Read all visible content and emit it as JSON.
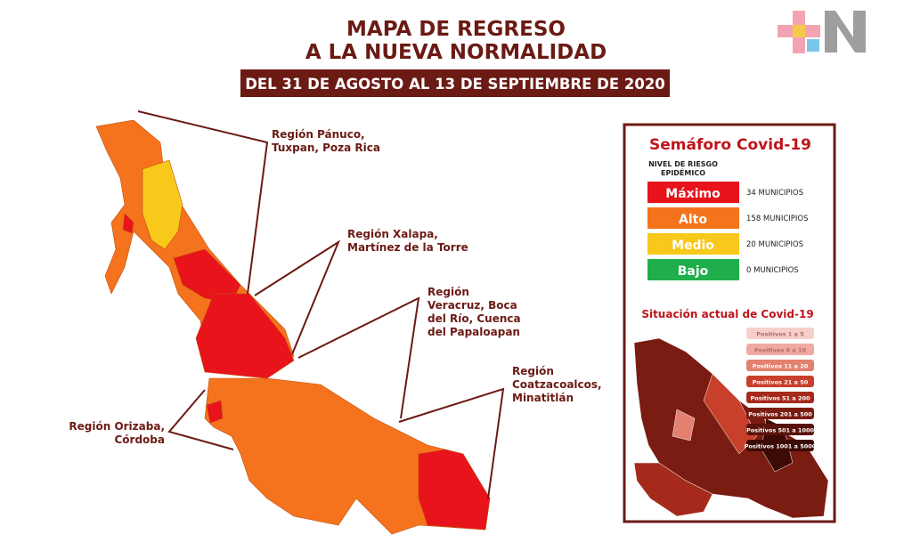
{
  "title": [
    "MAPA DE REGRESO",
    "A LA NUEVA NORMALIDAD"
  ],
  "date": "DEL 31 DE AGOSTO AL 13 DE SEPTIEMBRE DE 2020",
  "regions": [
    [
      "Región Pánuco,",
      "Tuxpan, Poza Rica"
    ],
    [
      "Región Xalapa,",
      "Martínez de la Torre"
    ],
    [
      "Región",
      "Veracruz, Boca",
      "del Río, Cuenca",
      "del Papaloapan"
    ],
    [
      "Región",
      "Coatzacoalcos,",
      "Minatitlán"
    ],
    [
      "Región Orizaba,",
      "Córdoba"
    ]
  ],
  "semaforo": {
    "title": "Semáforo Covid-19",
    "subtitle": [
      "NIVEL DE RIESGO",
      "EPIDÉMICO"
    ],
    "levels": [
      {
        "label": "Máximo",
        "count": "34 MUNICIPIOS",
        "color": "#e8131b"
      },
      {
        "label": "Alto",
        "count": "158 MUNICIPIOS",
        "color": "#f5731c"
      },
      {
        "label": "Medio",
        "count": "20 MUNICIPIOS",
        "color": "#f8c81a"
      },
      {
        "label": "Bajo",
        "count": "0 MUNICIPIOS",
        "color": "#1fae4b"
      }
    ]
  },
  "situacion": {
    "title": "Situación actual de Covid-19",
    "legend": [
      {
        "label": "Positivos 1 a 5",
        "color": "#f6cfcb"
      },
      {
        "label": "Positivos 6 a 10",
        "color": "#f0aaa3"
      },
      {
        "label": "Positivos 11 a 20",
        "color": "#e3806f"
      },
      {
        "label": "Positivos 21 a 50",
        "color": "#c8402c"
      },
      {
        "label": "Positivos 51 a 200",
        "color": "#a52a1c"
      },
      {
        "label": "Positivos 201 a 500",
        "color": "#7a1c12"
      },
      {
        "label": "Positivos 501 a 1000",
        "color": "#5a130c"
      },
      {
        "label": "Positivos 1001 a 5000",
        "color": "#3d0b06"
      }
    ]
  }
}
